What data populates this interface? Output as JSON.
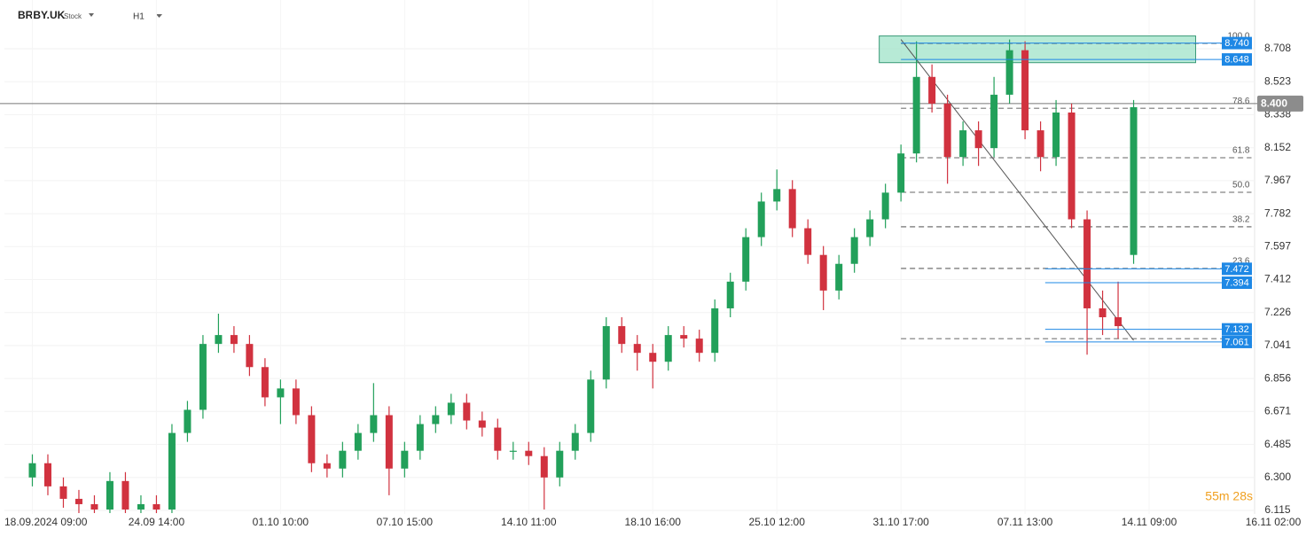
{
  "header": {
    "symbol": "BRBY.UK",
    "asset_type": "Stock",
    "timeframe": "H1"
  },
  "chart_data": {
    "type": "candlestick",
    "up_color": "#22a05a",
    "down_color": "#d1323f",
    "xlim": [
      -1.8,
      78.8
    ],
    "ylim": [
      6.095,
      8.982
    ],
    "xticks": [
      {
        "value": 0,
        "label": "18.09.2024 09:00"
      },
      {
        "value": 8,
        "label": "24.09 14:00"
      },
      {
        "value": 16,
        "label": "01.10 10:00"
      },
      {
        "value": 24,
        "label": "07.10 15:00"
      },
      {
        "value": 32,
        "label": "14.10 11:00"
      },
      {
        "value": 40,
        "label": "18.10 16:00"
      },
      {
        "value": 48,
        "label": "25.10 12:00"
      },
      {
        "value": 56,
        "label": "31.10 17:00"
      },
      {
        "value": 64,
        "label": "07.11 13:00"
      },
      {
        "value": 72,
        "label": "14.11 09:00"
      },
      {
        "value": 80,
        "label": "16.11 02:00"
      }
    ],
    "yticks": [
      8.708,
      8.523,
      8.338,
      8.152,
      7.967,
      7.782,
      7.597,
      7.412,
      7.226,
      7.041,
      6.856,
      6.671,
      6.485,
      {
        "value": 6.3,
        "label": "6.300"
      },
      6.115
    ],
    "grid": true,
    "x": [
      0,
      1,
      2,
      3,
      4,
      5,
      6,
      7,
      8,
      9,
      10,
      11,
      12,
      13,
      14,
      15,
      16,
      17,
      18,
      19,
      20,
      21,
      22,
      23,
      24,
      25,
      26,
      27,
      28,
      29,
      30,
      31,
      32,
      33,
      34,
      35,
      36,
      37,
      38,
      39,
      40,
      41,
      42,
      43,
      44,
      45,
      46,
      47,
      48,
      49,
      50,
      51,
      52,
      53,
      54,
      55,
      56,
      57,
      58,
      59,
      60,
      61,
      62,
      63,
      64,
      65,
      66,
      67,
      68,
      69,
      70,
      71
    ],
    "open": [
      6.3,
      6.38,
      6.25,
      6.18,
      6.15,
      6.12,
      6.28,
      6.12,
      6.15,
      6.12,
      6.55,
      6.68,
      7.05,
      7.1,
      7.05,
      6.92,
      6.75,
      6.8,
      6.65,
      6.38,
      6.35,
      6.45,
      6.55,
      6.65,
      6.35,
      6.45,
      6.6,
      6.65,
      6.72,
      6.62,
      6.58,
      6.45,
      6.45,
      6.42,
      6.3,
      6.45,
      6.55,
      6.85,
      7.15,
      7.05,
      7.0,
      6.95,
      7.1,
      7.08,
      7.0,
      7.25,
      7.4,
      7.65,
      7.85,
      7.92,
      7.7,
      7.55,
      7.35,
      7.5,
      7.65,
      7.75,
      7.9,
      8.12,
      8.55,
      8.4,
      8.1,
      8.25,
      8.15,
      8.45,
      8.7,
      8.25,
      8.1,
      8.35,
      7.75,
      7.25,
      7.2,
      7.55
    ],
    "high": [
      6.43,
      6.43,
      6.3,
      6.23,
      6.2,
      6.33,
      6.33,
      6.2,
      6.2,
      6.6,
      6.73,
      7.1,
      7.22,
      7.15,
      7.1,
      6.97,
      6.85,
      6.85,
      6.7,
      6.43,
      6.5,
      6.6,
      6.83,
      6.7,
      6.5,
      6.65,
      6.7,
      6.77,
      6.77,
      6.67,
      6.63,
      6.5,
      6.5,
      6.47,
      6.5,
      6.6,
      6.9,
      7.2,
      7.2,
      7.1,
      7.05,
      7.15,
      7.15,
      7.13,
      7.3,
      7.45,
      7.7,
      7.9,
      8.03,
      7.97,
      7.75,
      7.6,
      7.55,
      7.7,
      7.8,
      7.95,
      8.17,
      8.75,
      8.62,
      8.45,
      8.3,
      8.3,
      8.55,
      8.76,
      8.75,
      8.3,
      8.42,
      8.4,
      7.8,
      7.35,
      7.4,
      8.42
    ],
    "low": [
      6.25,
      6.2,
      6.13,
      6.1,
      6.1,
      6.1,
      6.1,
      6.1,
      6.1,
      6.1,
      6.5,
      6.63,
      7.0,
      7.0,
      6.87,
      6.7,
      6.6,
      6.6,
      6.33,
      6.3,
      6.3,
      6.4,
      6.5,
      6.2,
      6.3,
      6.4,
      6.55,
      6.6,
      6.57,
      6.53,
      6.4,
      6.4,
      6.37,
      6.12,
      6.25,
      6.4,
      6.5,
      6.8,
      7.0,
      6.9,
      6.8,
      6.9,
      7.03,
      6.95,
      6.95,
      7.2,
      7.35,
      7.6,
      7.8,
      7.65,
      7.5,
      7.24,
      7.3,
      7.45,
      7.6,
      7.7,
      7.85,
      8.07,
      8.35,
      7.95,
      8.05,
      8.05,
      8.1,
      8.4,
      8.2,
      8.02,
      8.05,
      7.7,
      6.99,
      7.1,
      7.08,
      7.5
    ],
    "close": [
      6.38,
      6.25,
      6.18,
      6.15,
      6.12,
      6.28,
      6.12,
      6.15,
      6.12,
      6.55,
      6.68,
      7.05,
      7.1,
      7.05,
      6.92,
      6.75,
      6.8,
      6.65,
      6.38,
      6.35,
      6.45,
      6.55,
      6.65,
      6.35,
      6.45,
      6.6,
      6.65,
      6.72,
      6.62,
      6.58,
      6.45,
      6.45,
      6.42,
      6.3,
      6.45,
      6.55,
      6.85,
      7.15,
      7.05,
      7.0,
      6.95,
      7.1,
      7.08,
      7.0,
      7.25,
      7.4,
      7.65,
      7.85,
      7.92,
      7.7,
      7.55,
      7.35,
      7.5,
      7.65,
      7.75,
      7.9,
      8.12,
      8.55,
      8.4,
      8.1,
      8.25,
      8.15,
      8.45,
      8.7,
      8.25,
      8.1,
      8.35,
      7.75,
      7.25,
      7.2,
      7.15,
      8.38
    ],
    "current_price": {
      "value": 8.4,
      "label": "8.400"
    },
    "zone": {
      "x": [
        54.6,
        75
      ],
      "y": [
        8.63,
        8.78
      ],
      "color": "#9fe3c8"
    },
    "trendline": {
      "x": [
        56,
        71
      ],
      "y": [
        8.76,
        7.07
      ]
    },
    "fib_x": [
      56,
      78.6
    ],
    "fib_levels": [
      {
        "level": "100.0",
        "price": 8.738
      },
      {
        "level": "78.6",
        "price": 8.374
      },
      {
        "level": "61.8",
        "price": 8.096
      },
      {
        "level": "50.0",
        "price": 7.902
      },
      {
        "level": "38.2",
        "price": 7.708
      },
      {
        "level": "23.6",
        "price": 7.474
      },
      {
        "price": 7.08
      }
    ],
    "price_lines": [
      {
        "value": 8.74,
        "label": "8.740",
        "x_start": 56
      },
      {
        "value": 8.648,
        "label": "8.648",
        "x_start": 56
      },
      {
        "value": 7.472,
        "label": "7.472",
        "x_start": 65.3
      },
      {
        "value": 7.394,
        "label": "7.394",
        "x_start": 65.3
      },
      {
        "value": 7.132,
        "label": "7.132",
        "x_start": 65.3
      },
      {
        "value": 7.061,
        "label": "7.061",
        "x_start": 65.3
      }
    ],
    "timer": "55m 28s"
  }
}
